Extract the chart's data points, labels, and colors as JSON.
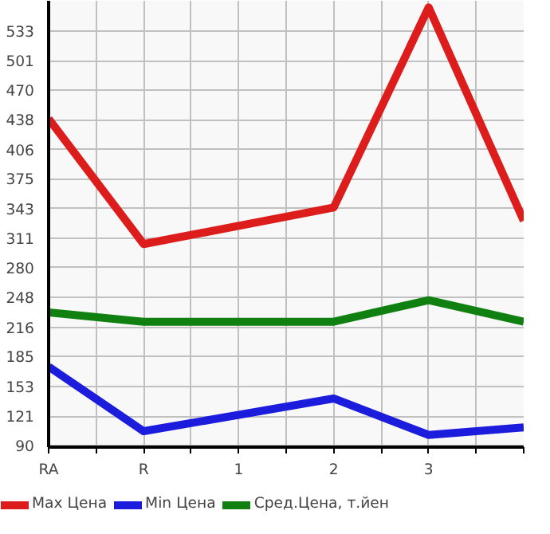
{
  "chart_data": {
    "type": "line",
    "categories": [
      "RA",
      "R",
      "1",
      "2",
      "3",
      null
    ],
    "series": [
      {
        "name": "Max Цена",
        "color": "#dd1c1c",
        "values": [
          439,
          305,
          null,
          344,
          558,
          330
        ]
      },
      {
        "name": "Min Цена",
        "color": "#1c1cdd",
        "values": [
          174,
          105,
          null,
          140,
          101,
          109
        ]
      },
      {
        "name": "Сред.Цена, т.йен",
        "color": "#108010",
        "values": [
          232,
          222,
          null,
          222,
          245,
          222
        ]
      }
    ],
    "ylim": [
      88,
      565
    ],
    "yticks": [
      90,
      121,
      153,
      185,
      216,
      248,
      280,
      311,
      343,
      375,
      406,
      438,
      470,
      501,
      533
    ],
    "grid": true,
    "legend": "bottom",
    "marker": "none",
    "line_style": "solid"
  }
}
